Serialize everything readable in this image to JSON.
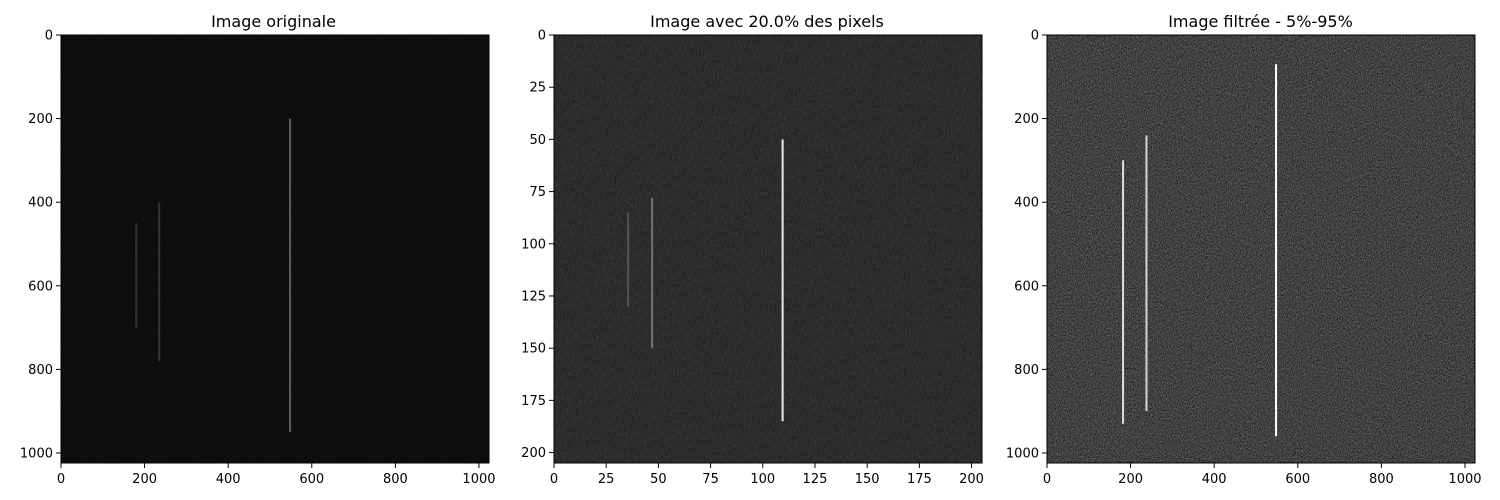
{
  "figure": {
    "panels": [
      {
        "title": "Image originale"
      },
      {
        "title": "Image avec 20.0% des pixels"
      },
      {
        "title": "Image filtrée - 5%-95%"
      }
    ]
  },
  "chart_data": [
    {
      "type": "heatmap",
      "title": "Image originale",
      "xlim": [
        0,
        1024
      ],
      "ylim": [
        1024,
        0
      ],
      "xticks": [
        0,
        200,
        400,
        600,
        800,
        1000
      ],
      "yticks": [
        0,
        200,
        400,
        600,
        800,
        1000
      ],
      "colormap": "gray",
      "background": "#0a0a0a",
      "streaks": [
        {
          "x": 548,
          "y0": 200,
          "y1": 950,
          "brightness": 0.25
        },
        {
          "x": 235,
          "y0": 400,
          "y1": 780,
          "brightness": 0.06
        },
        {
          "x": 180,
          "y0": 450,
          "y1": 700,
          "brightness": 0.05
        }
      ]
    },
    {
      "type": "heatmap",
      "title": "Image avec 20.0% des pixels",
      "xlim": [
        0,
        205
      ],
      "ylim": [
        205,
        0
      ],
      "xticks": [
        0,
        25,
        50,
        75,
        100,
        125,
        150,
        175,
        200
      ],
      "yticks": [
        0,
        25,
        50,
        75,
        100,
        125,
        150,
        175,
        200
      ],
      "colormap": "gray",
      "background": "#1c1c1c",
      "streaks": [
        {
          "x": 109.5,
          "y0": 50,
          "y1": 185,
          "brightness": 0.9
        },
        {
          "x": 47,
          "y0": 78,
          "y1": 150,
          "brightness": 0.35
        },
        {
          "x": 35.5,
          "y0": 85,
          "y1": 130,
          "brightness": 0.2
        }
      ]
    },
    {
      "type": "heatmap",
      "title": "Image filtrée - 5%-95%",
      "xlim": [
        0,
        1024
      ],
      "ylim": [
        1024,
        0
      ],
      "xticks": [
        0,
        200,
        400,
        600,
        800,
        1000
      ],
      "yticks": [
        0,
        200,
        400,
        600,
        800,
        1000
      ],
      "colormap": "gray",
      "background": "#5a5a5a",
      "streaks": [
        {
          "x": 548,
          "y0": 70,
          "y1": 960,
          "brightness": 1.0
        },
        {
          "x": 182,
          "y0": 300,
          "y1": 930,
          "brightness": 0.85
        },
        {
          "x": 238,
          "y0": 240,
          "y1": 900,
          "brightness": 0.8
        }
      ]
    }
  ]
}
